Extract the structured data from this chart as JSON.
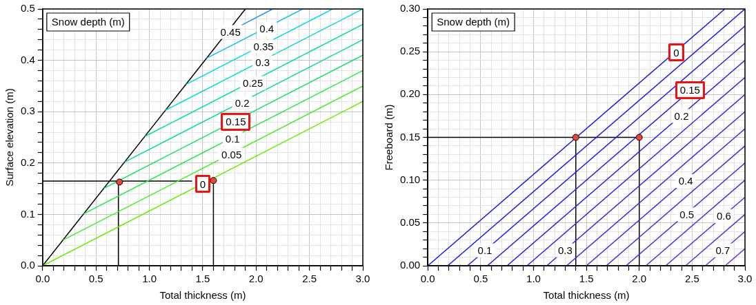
{
  "chart_data": [
    {
      "type": "line",
      "xlabel": "Total thickness (m)",
      "ylabel": "Surface elevation (m)",
      "legend_title": "Snow depth (m)",
      "xlim": [
        0,
        3
      ],
      "ylim": [
        0,
        0.5
      ],
      "grid": true,
      "xticks": [
        {
          "value": 0,
          "label": "0.0"
        },
        {
          "value": 0.1,
          "label": null
        },
        {
          "value": 0.2,
          "label": null
        },
        {
          "value": 0.3,
          "label": null
        },
        {
          "value": 0.4,
          "label": null
        },
        0.5,
        {
          "value": 0.6,
          "label": null
        },
        {
          "value": 0.7,
          "label": null
        },
        {
          "value": 0.8,
          "label": null
        },
        {
          "value": 0.9,
          "label": null
        },
        {
          "value": 1,
          "label": "1.0"
        },
        {
          "value": 1.1,
          "label": null
        },
        {
          "value": 1.2,
          "label": null
        },
        {
          "value": 1.3,
          "label": null
        },
        {
          "value": 1.4,
          "label": null
        },
        1.5,
        {
          "value": 1.6,
          "label": null
        },
        {
          "value": 1.7,
          "label": null
        },
        {
          "value": 1.8,
          "label": null
        },
        {
          "value": 1.9,
          "label": null
        },
        {
          "value": 2,
          "label": "2.0"
        },
        {
          "value": 2.1,
          "label": null
        },
        {
          "value": 2.2,
          "label": null
        },
        {
          "value": 2.3,
          "label": null
        },
        {
          "value": 2.4,
          "label": null
        },
        2.5,
        {
          "value": 2.6,
          "label": null
        },
        {
          "value": 2.7,
          "label": null
        },
        {
          "value": 2.8,
          "label": null
        },
        {
          "value": 2.9,
          "label": null
        },
        {
          "value": 3,
          "label": "3.0"
        }
      ],
      "yticks": [
        {
          "value": 0,
          "label": "0.0"
        },
        {
          "value": 0.02,
          "label": null
        },
        {
          "value": 0.04,
          "label": null
        },
        {
          "value": 0.06,
          "label": null
        },
        {
          "value": 0.08,
          "label": null
        },
        0.1,
        {
          "value": 0.12,
          "label": null
        },
        {
          "value": 0.14,
          "label": null
        },
        {
          "value": 0.16,
          "label": null
        },
        {
          "value": 0.18,
          "label": null
        },
        0.2,
        {
          "value": 0.22,
          "label": null
        },
        {
          "value": 0.24,
          "label": null
        },
        {
          "value": 0.26,
          "label": null
        },
        {
          "value": 0.28,
          "label": null
        },
        0.3,
        {
          "value": 0.32,
          "label": null
        },
        {
          "value": 0.34,
          "label": null
        },
        {
          "value": 0.36,
          "label": null
        },
        {
          "value": 0.38,
          "label": null
        },
        0.4,
        {
          "value": 0.42,
          "label": null
        },
        {
          "value": 0.44,
          "label": null
        },
        {
          "value": 0.46,
          "label": null
        },
        {
          "value": 0.48,
          "label": null
        },
        0.5
      ],
      "series": [
        {
          "type": "line",
          "color": "#66ee00",
          "x": [
            0,
            3
          ],
          "values": [
            0,
            0.32
          ]
        },
        {
          "type": "line",
          "color": "#44ee22",
          "x": [
            0.192,
            3
          ],
          "values": [
            0.05,
            0.35
          ]
        },
        {
          "type": "line",
          "color": "#22e844",
          "x": [
            0.384,
            3
          ],
          "values": [
            0.101,
            0.38
          ]
        },
        {
          "type": "line",
          "color": "#11e066",
          "x": [
            0.576,
            3
          ],
          "values": [
            0.151,
            0.41
          ]
        },
        {
          "type": "line",
          "color": "#00dd88",
          "x": [
            0.768,
            3
          ],
          "values": [
            0.202,
            0.44
          ]
        },
        {
          "type": "line",
          "color": "#00ddaa",
          "x": [
            0.96,
            3
          ],
          "values": [
            0.252,
            0.47
          ]
        },
        {
          "type": "line",
          "color": "#00dccc",
          "x": [
            1.152,
            3
          ],
          "values": [
            0.303,
            0.5
          ]
        },
        {
          "type": "line",
          "color": "#00d8e8",
          "x": [
            1.344,
            2.718
          ],
          "values": [
            0.353,
            0.5
          ]
        },
        {
          "type": "line",
          "color": "#10c0f0",
          "x": [
            1.536,
            2.437
          ],
          "values": [
            0.404,
            0.5
          ]
        },
        {
          "type": "line",
          "color": "#2090f0",
          "x": [
            1.86,
            2.156
          ],
          "values": [
            0.468,
            0.5
          ]
        },
        {
          "type": "line",
          "color": "#000000",
          "x": [
            0,
            1.9
          ],
          "values": [
            0,
            0.5
          ]
        },
        {
          "type": "line",
          "color": "#000000",
          "x": [
            0,
            1.4
          ],
          "values": [
            0.165,
            0.165
          ]
        },
        {
          "type": "line",
          "color": "#000000",
          "x": [
            0.71,
            0.71
          ],
          "values": [
            0,
            0.163
          ]
        },
        {
          "type": "line",
          "color": "#000000",
          "x": [
            1.6,
            1.6
          ],
          "values": [
            0,
            0.166
          ]
        },
        {
          "type": "scatter",
          "color": "#e8463c",
          "marker": "circle",
          "x": [
            0.72,
            1.6
          ],
          "values": [
            0.163,
            0.166
          ]
        }
      ],
      "annotations": [
        {
          "text": "0.45",
          "x": 1.76,
          "y": 0.455
        },
        {
          "text": "0.4",
          "x": 2.1,
          "y": 0.461
        },
        {
          "text": "0.35",
          "x": 2.07,
          "y": 0.427
        },
        {
          "text": "0.3",
          "x": 2.06,
          "y": 0.396
        },
        {
          "text": "0.25",
          "x": 1.97,
          "y": 0.356
        },
        {
          "text": "0.2",
          "x": 1.87,
          "y": 0.317
        },
        {
          "text": "0.15",
          "x": 1.81,
          "y": 0.28
        },
        {
          "text": "0.1",
          "x": 1.78,
          "y": 0.247
        },
        {
          "text": "0.05",
          "x": 1.77,
          "y": 0.216
        },
        {
          "text": "0",
          "x": 1.5,
          "y": 0.159
        }
      ]
    },
    {
      "type": "line",
      "xlabel": "Total thickness (m)",
      "ylabel": "Freeboard (m)",
      "legend_title": "Snow depth (m)",
      "xlim": [
        0,
        3
      ],
      "ylim": [
        0,
        0.3
      ],
      "grid": true,
      "xticks": [
        {
          "value": 0,
          "label": "0.0"
        },
        {
          "value": 0.1,
          "label": null
        },
        {
          "value": 0.2,
          "label": null
        },
        {
          "value": 0.3,
          "label": null
        },
        {
          "value": 0.4,
          "label": null
        },
        0.5,
        {
          "value": 0.6,
          "label": null
        },
        {
          "value": 0.7,
          "label": null
        },
        {
          "value": 0.8,
          "label": null
        },
        {
          "value": 0.9,
          "label": null
        },
        {
          "value": 1,
          "label": "1.0"
        },
        {
          "value": 1.1,
          "label": null
        },
        {
          "value": 1.2,
          "label": null
        },
        {
          "value": 1.3,
          "label": null
        },
        {
          "value": 1.4,
          "label": null
        },
        1.5,
        {
          "value": 1.6,
          "label": null
        },
        {
          "value": 1.7,
          "label": null
        },
        {
          "value": 1.8,
          "label": null
        },
        {
          "value": 1.9,
          "label": null
        },
        {
          "value": 2,
          "label": "2.0"
        },
        {
          "value": 2.1,
          "label": null
        },
        {
          "value": 2.2,
          "label": null
        },
        {
          "value": 2.3,
          "label": null
        },
        {
          "value": 2.4,
          "label": null
        },
        2.5,
        {
          "value": 2.6,
          "label": null
        },
        {
          "value": 2.7,
          "label": null
        },
        {
          "value": 2.8,
          "label": null
        },
        {
          "value": 2.9,
          "label": null
        },
        {
          "value": 3,
          "label": "3.0"
        }
      ],
      "yticks": [
        {
          "value": 0,
          "label": "0.00"
        },
        {
          "value": 0.01,
          "label": null
        },
        {
          "value": 0.02,
          "label": null
        },
        {
          "value": 0.03,
          "label": null
        },
        {
          "value": 0.04,
          "label": null
        },
        0.05,
        {
          "value": 0.06,
          "label": null
        },
        {
          "value": 0.07,
          "label": null
        },
        {
          "value": 0.08,
          "label": null
        },
        {
          "value": 0.09,
          "label": null
        },
        {
          "value": 0.1,
          "label": "0.10"
        },
        {
          "value": 0.11,
          "label": null
        },
        {
          "value": 0.12,
          "label": null
        },
        {
          "value": 0.13,
          "label": null
        },
        {
          "value": 0.14,
          "label": null
        },
        0.15,
        {
          "value": 0.16,
          "label": null
        },
        {
          "value": 0.17,
          "label": null
        },
        {
          "value": 0.18,
          "label": null
        },
        {
          "value": 0.19,
          "label": null
        },
        {
          "value": 0.2,
          "label": "0.20"
        },
        {
          "value": 0.21,
          "label": null
        },
        {
          "value": 0.22,
          "label": null
        },
        {
          "value": 0.23,
          "label": null
        },
        {
          "value": 0.24,
          "label": null
        },
        0.25,
        {
          "value": 0.26,
          "label": null
        },
        {
          "value": 0.27,
          "label": null
        },
        {
          "value": 0.28,
          "label": null
        },
        {
          "value": 0.29,
          "label": null
        },
        {
          "value": 0.3,
          "label": "0.30"
        }
      ],
      "series": [
        {
          "type": "line",
          "color": "#1a1ae0",
          "x": [
            0,
            2.81
          ],
          "values": [
            0,
            0.3
          ]
        },
        {
          "type": "line",
          "color": "#1e1ce0",
          "x": [
            0.188,
            3
          ],
          "values": [
            0,
            0.3
          ]
        },
        {
          "type": "line",
          "color": "#221ee0",
          "x": [
            0.375,
            3
          ],
          "values": [
            0,
            0.28
          ]
        },
        {
          "type": "line",
          "color": "#2620e0",
          "x": [
            0.563,
            3
          ],
          "values": [
            0,
            0.26
          ]
        },
        {
          "type": "line",
          "color": "#2a22e0",
          "x": [
            0.75,
            3
          ],
          "values": [
            0,
            0.24
          ]
        },
        {
          "type": "line",
          "color": "#3024e0",
          "x": [
            0.938,
            3
          ],
          "values": [
            0,
            0.22
          ]
        },
        {
          "type": "line",
          "color": "#3626e0",
          "x": [
            1.125,
            3
          ],
          "values": [
            0,
            0.2
          ]
        },
        {
          "type": "line",
          "color": "#3c28e0",
          "x": [
            1.313,
            3
          ],
          "values": [
            0,
            0.18
          ]
        },
        {
          "type": "line",
          "color": "#422ae0",
          "x": [
            1.5,
            3
          ],
          "values": [
            0,
            0.16
          ]
        },
        {
          "type": "line",
          "color": "#482ce0",
          "x": [
            1.688,
            3
          ],
          "values": [
            0,
            0.14
          ]
        },
        {
          "type": "line",
          "color": "#4e2ee0",
          "x": [
            1.875,
            3
          ],
          "values": [
            0,
            0.12
          ]
        },
        {
          "type": "line",
          "color": "#5430e0",
          "x": [
            2.063,
            3
          ],
          "values": [
            0,
            0.1
          ]
        },
        {
          "type": "line",
          "color": "#5a32e0",
          "x": [
            2.25,
            3
          ],
          "values": [
            0,
            0.08
          ]
        },
        {
          "type": "line",
          "color": "#6034e0",
          "x": [
            2.438,
            3
          ],
          "values": [
            0,
            0.06
          ]
        },
        {
          "type": "line",
          "color": "#6836e0",
          "x": [
            2.625,
            3
          ],
          "values": [
            0,
            0.04
          ]
        },
        {
          "type": "line",
          "color": "#703ae0",
          "x": [
            2.813,
            3
          ],
          "values": [
            0,
            0.02
          ]
        },
        {
          "type": "line",
          "color": "#000000",
          "x": [
            0,
            2
          ],
          "values": [
            0.15,
            0.15
          ]
        },
        {
          "type": "line",
          "color": "#000000",
          "x": [
            1.4,
            1.4
          ],
          "values": [
            0,
            0.15
          ]
        },
        {
          "type": "line",
          "color": "#000000",
          "x": [
            2,
            2
          ],
          "values": [
            0,
            0.15
          ]
        },
        {
          "type": "scatter",
          "color": "#e8463c",
          "marker": "circle",
          "x": [
            1.4,
            2
          ],
          "values": [
            0.15,
            0.15
          ]
        }
      ],
      "annotations": [
        {
          "text": "0",
          "x": 2.35,
          "y": 0.249
        },
        {
          "text": "0.15",
          "x": 2.48,
          "y": 0.205
        },
        {
          "text": "0.2",
          "x": 2.4,
          "y": 0.175
        },
        {
          "text": "0.1",
          "x": 0.54,
          "y": 0.018
        },
        {
          "text": "0.3",
          "x": 1.3,
          "y": 0.018
        },
        {
          "text": "0.4",
          "x": 2.44,
          "y": 0.099
        },
        {
          "text": "0.5",
          "x": 2.45,
          "y": 0.06
        },
        {
          "text": "0.6",
          "x": 2.8,
          "y": 0.058
        },
        {
          "text": "0.7",
          "x": 2.79,
          "y": 0.018
        }
      ]
    }
  ]
}
